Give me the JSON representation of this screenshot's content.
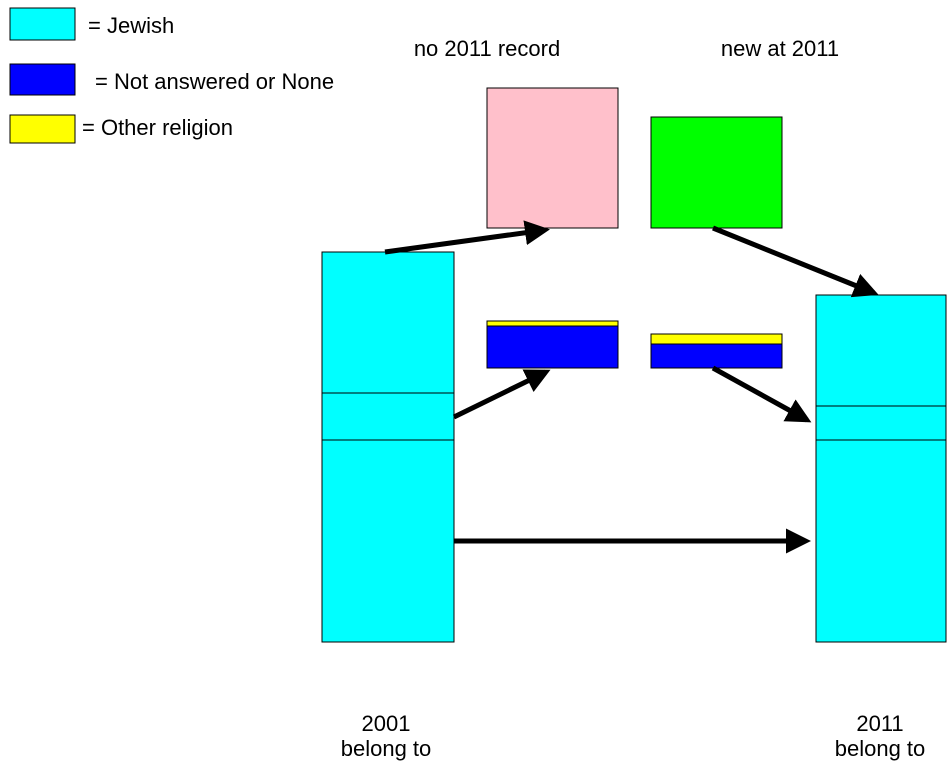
{
  "legend": [
    {
      "label": "= Jewish"
    },
    {
      "label": "= Not answered or None"
    },
    {
      "label": "= Other religion"
    }
  ],
  "headers": {
    "left": "no 2011 record",
    "right": "new at 2011"
  },
  "columns": [
    {
      "year": "2001",
      "caption": "belong to"
    },
    {
      "year": "2011",
      "caption": "belong to"
    }
  ]
}
